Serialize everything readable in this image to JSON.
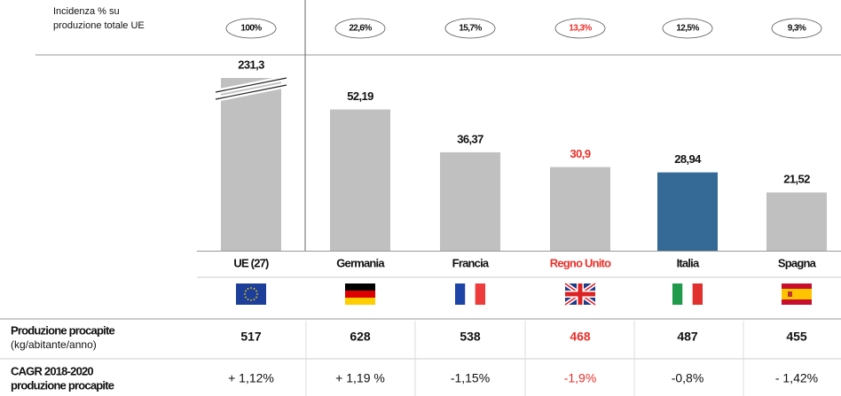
{
  "chart_data": {
    "type": "bar",
    "share_label": [
      "Incidenza % su",
      "produzione totale UE"
    ],
    "share_labels": [
      "100%",
      "22,6%",
      "15,7%",
      "13,3%",
      "12,5%",
      "9,3%"
    ],
    "categories": [
      "UE (27)",
      "Germania",
      "Francia",
      "Regno Unito",
      "Italia",
      "Spagna"
    ],
    "values": [
      231.3,
      52.19,
      36.37,
      30.9,
      28.94,
      21.52
    ],
    "value_labels": [
      "231,3",
      "52,19",
      "36,37",
      "30,9",
      "28,94",
      "21,52"
    ],
    "colors": [
      "#c0c0c0",
      "#c0c0c0",
      "#c0c0c0",
      "#c0c0c0",
      "#346a95",
      "#c0c0c0"
    ],
    "highlight_index": 3,
    "highlight_color": "#e8312b",
    "ylim": [
      0,
      55
    ],
    "rows": [
      {
        "label": [
          "Produzione procapite",
          "(kg/abitante/anno)"
        ],
        "cells": [
          "517",
          "628",
          "538",
          "468",
          "487",
          "455"
        ]
      },
      {
        "label": [
          "CAGR 2018-2020",
          "produzione procapite"
        ],
        "cells": [
          "+ 1,12%",
          "+ 1,19 %",
          "-1,15%",
          "-1,9%",
          "-0,8%",
          "- 1,42%"
        ]
      }
    ]
  }
}
